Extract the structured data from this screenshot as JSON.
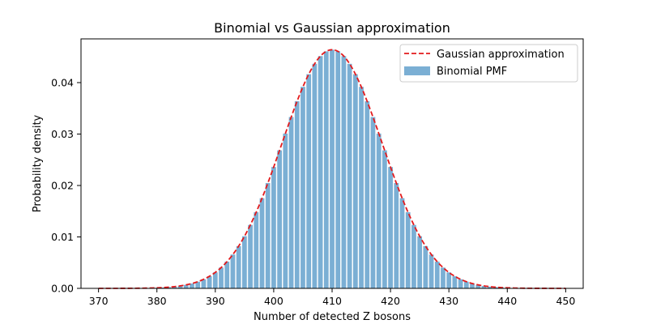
{
  "chart_data": {
    "type": "bar",
    "title": "Binomial vs Gaussian approximation",
    "xlabel": "Number of detected Z bosons",
    "ylabel": "Probability density",
    "xlim": [
      367,
      453
    ],
    "ylim": [
      0,
      0.0485
    ],
    "x_ticks": [
      370,
      380,
      390,
      400,
      410,
      420,
      430,
      440,
      450
    ],
    "y_ticks": [
      0.0,
      0.01,
      0.02,
      0.03,
      0.04
    ],
    "y_tick_labels": [
      "0.00",
      "0.01",
      "0.02",
      "0.03",
      "0.04"
    ],
    "legend_position": "top-right",
    "grid": false,
    "series": [
      {
        "name": "Binomial PMF",
        "type": "bar",
        "color": "#7bafd4",
        "distribution": {
          "mean": 410,
          "sd": 8.6
        },
        "x_range": [
          370,
          450
        ]
      },
      {
        "name": "Gaussian approximation",
        "type": "line",
        "style": "dashed",
        "color": "#e31a1c",
        "distribution": {
          "mean": 410,
          "sd": 8.6
        },
        "x_range": [
          370,
          450
        ]
      }
    ]
  }
}
